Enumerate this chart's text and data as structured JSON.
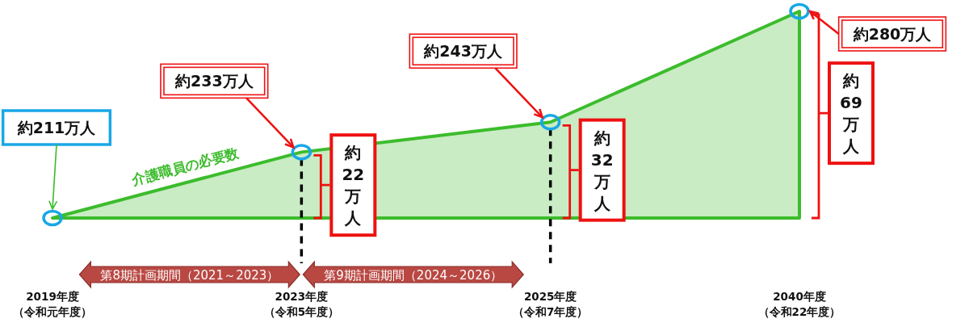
{
  "chart_data": {
    "type": "area",
    "categories": [
      "2019年度（令和元年度）",
      "2023年度（令和5年度）",
      "2025年度（令和7年度）",
      "2040年度（令和22年度）"
    ],
    "series": [
      {
        "name": "介護職員の必要数",
        "color": "#3cbc2c",
        "values": [
          211,
          233,
          243,
          280
        ],
        "value_labels": [
          "約211万人",
          "約233万人",
          "約243万人",
          "約280万人"
        ]
      }
    ],
    "marker": "circle",
    "legend": false,
    "tick_labels": "x",
    "ref_lines": [
      {
        "axis": "x",
        "value": "2023年度（令和5年度）",
        "line_style": "dashed",
        "color": "#000000"
      },
      {
        "axis": "x",
        "value": "2025年度（令和7年度）",
        "line_style": "dashed",
        "color": "#000000"
      }
    ],
    "annotations": [
      {
        "text": "約22万人",
        "x": "2023年度（令和5年度）",
        "y": 222
      },
      {
        "text": "約32万人",
        "x": "2025年度（令和7年度）",
        "y": 227
      },
      {
        "text": "約69万人",
        "x": "2040年度（令和22年度）",
        "y": 246
      },
      "第8期計画期間（2021～2023）",
      "第9期計画期間（2024～2026）"
    ]
  }
}
